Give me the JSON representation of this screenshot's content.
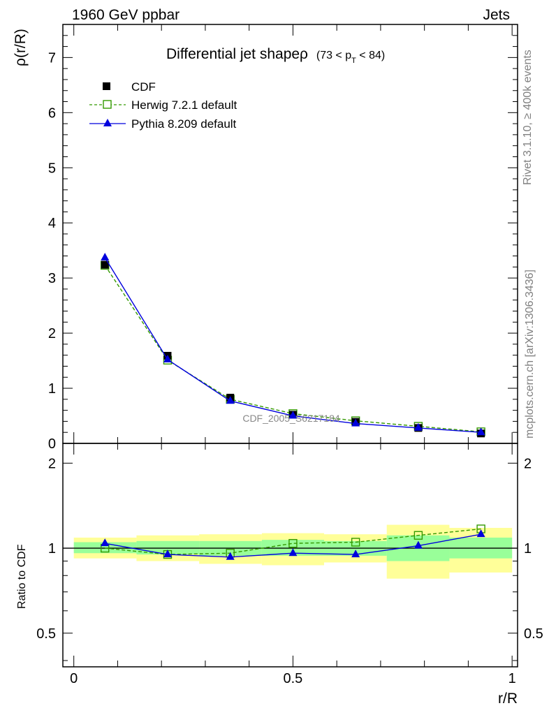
{
  "header": {
    "left": "1960 GeV ppbar",
    "right": "Jets"
  },
  "side_labels": {
    "rivet": "Rivet 3.1.10, ≥ 400k events",
    "mcplots": "mcplots.cern.ch [arXiv:1306.3436]"
  },
  "watermark": "CDF_2005_S6217184",
  "colors": {
    "cdf": "#000000",
    "herwig": "#339900",
    "pythia": "#0000dd",
    "band_outer": "#ffff99",
    "band_inner": "#99ff99"
  },
  "chart_data": [
    {
      "type": "line",
      "title": "Differential jet shapeρ",
      "title_suffix": "(73 < p",
      "title_sub": "T",
      "title_end": " < 84)",
      "ylabel": "ρ(r/R)",
      "xlabel": "",
      "xlim": [
        -0.025,
        1.0125
      ],
      "ylim": [
        0,
        7.6
      ],
      "yticks": [
        0,
        1,
        2,
        3,
        4,
        5,
        6,
        7
      ],
      "ytick_labels": [
        "0",
        "1",
        "2",
        "3",
        "4",
        "5",
        "6",
        "7"
      ],
      "legend_position": "top-left",
      "x": [
        0.071,
        0.214,
        0.357,
        0.5,
        0.643,
        0.786,
        0.929
      ],
      "series": [
        {
          "name": "CDF",
          "marker": "filled-square",
          "values": [
            3.24,
            1.59,
            0.83,
            0.52,
            0.39,
            0.28,
            0.18
          ]
        },
        {
          "name": "Herwig 7.2.1 default",
          "marker": "open-square",
          "line": "dashed",
          "values": [
            3.23,
            1.51,
            0.8,
            0.54,
            0.41,
            0.31,
            0.21
          ]
        },
        {
          "name": "Pythia 8.209 default",
          "marker": "triangle",
          "line": "solid",
          "values": [
            3.37,
            1.52,
            0.77,
            0.5,
            0.36,
            0.28,
            0.2
          ]
        }
      ]
    },
    {
      "type": "line",
      "ylabel": "Ratio to CDF",
      "xlabel": "r/R",
      "xlim": [
        -0.025,
        1.0125
      ],
      "ylim": [
        0.38,
        2.35
      ],
      "yticks": [
        0.5,
        1,
        2
      ],
      "ytick_labels": [
        "0.5",
        "1",
        "2"
      ],
      "xticks": [
        0,
        0.5,
        1
      ],
      "xtick_labels": [
        "0",
        "0.5",
        "1"
      ],
      "bands": {
        "edges": [
          0,
          0.143,
          0.286,
          0.429,
          0.571,
          0.714,
          0.857,
          1.0
        ],
        "outer_low": [
          0.92,
          0.9,
          0.88,
          0.87,
          0.89,
          0.78,
          0.82
        ],
        "outer_high": [
          1.09,
          1.11,
          1.12,
          1.13,
          1.12,
          1.21,
          1.18
        ],
        "inner_low": [
          0.96,
          0.95,
          0.94,
          0.94,
          0.94,
          0.9,
          0.92
        ],
        "inner_high": [
          1.05,
          1.06,
          1.06,
          1.07,
          1.06,
          1.11,
          1.09
        ]
      },
      "x": [
        0.071,
        0.214,
        0.357,
        0.5,
        0.643,
        0.786,
        0.929
      ],
      "series": [
        {
          "name": "Herwig 7.2.1 default",
          "marker": "open-square",
          "line": "dashed",
          "values": [
            1.0,
            0.95,
            0.96,
            1.04,
            1.05,
            1.11,
            1.17
          ]
        },
        {
          "name": "Pythia 8.209 default",
          "marker": "triangle",
          "line": "solid",
          "values": [
            1.04,
            0.95,
            0.93,
            0.96,
            0.95,
            1.02,
            1.12
          ]
        }
      ]
    }
  ]
}
